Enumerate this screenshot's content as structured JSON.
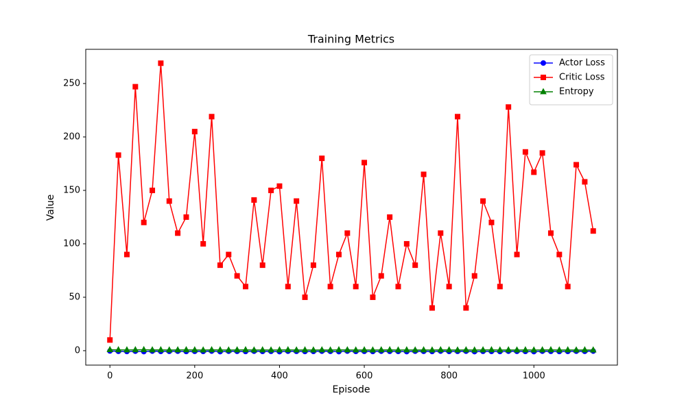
{
  "chart_data": {
    "type": "line",
    "title": "Training Metrics",
    "xlabel": "Episode",
    "ylabel": "Value",
    "x": [
      0,
      20,
      40,
      60,
      80,
      100,
      120,
      140,
      160,
      180,
      200,
      220,
      240,
      260,
      280,
      300,
      320,
      340,
      360,
      380,
      400,
      420,
      440,
      460,
      480,
      500,
      520,
      540,
      560,
      580,
      600,
      620,
      640,
      660,
      680,
      700,
      720,
      740,
      760,
      780,
      800,
      820,
      840,
      860,
      880,
      900,
      920,
      940,
      960,
      980,
      1000,
      1020,
      1040,
      1060,
      1080,
      1100,
      1120,
      1140
    ],
    "series": [
      {
        "name": "Actor Loss",
        "color": "#0000ff",
        "marker": "circle",
        "values": [
          -0.3,
          -0.6,
          -0.8,
          -0.5,
          -0.9,
          -0.4,
          -0.7,
          -0.6,
          -0.5,
          -0.8,
          -0.6,
          -0.7,
          -0.4,
          -0.9,
          -0.5,
          -0.6,
          -0.8,
          -0.5,
          -0.7,
          -0.6,
          -0.9,
          -0.5,
          -0.6,
          -0.8,
          -0.7,
          -0.5,
          -0.6,
          -0.9,
          -0.4,
          -0.7,
          -0.6,
          -0.8,
          -0.5,
          -0.6,
          -0.7,
          -0.9,
          -0.5,
          -0.6,
          -0.8,
          -0.4,
          -0.7,
          -0.6,
          -0.5,
          -0.9,
          -0.6,
          -0.7,
          -0.8,
          -0.5,
          -0.6,
          -0.7,
          -0.9,
          -0.5,
          -0.6,
          -0.8,
          -0.7,
          -0.5,
          -0.6,
          -0.4
        ]
      },
      {
        "name": "Critic Loss",
        "color": "#ff0000",
        "marker": "square",
        "values": [
          10,
          183,
          90,
          247,
          120,
          150,
          269,
          140,
          110,
          125,
          205,
          100,
          219,
          80,
          90,
          70,
          60,
          141,
          80,
          150,
          154,
          60,
          140,
          50,
          80,
          180,
          60,
          90,
          110,
          60,
          176,
          50,
          70,
          125,
          60,
          100,
          80,
          165,
          40,
          110,
          60,
          219,
          40,
          70,
          140,
          120,
          60,
          228,
          90,
          186,
          167,
          185,
          110,
          90,
          60,
          174,
          158,
          112
        ]
      },
      {
        "name": "Entropy",
        "color": "#008000",
        "marker": "triangle",
        "values": [
          0.9,
          0.8,
          0.7,
          0.8,
          0.9,
          0.7,
          0.8,
          0.6,
          0.7,
          0.8,
          0.7,
          0.6,
          0.8,
          0.7,
          0.6,
          0.7,
          0.8,
          0.6,
          0.7,
          0.6,
          0.7,
          0.8,
          0.6,
          0.7,
          0.6,
          0.7,
          0.6,
          0.8,
          0.7,
          0.6,
          0.7,
          0.6,
          0.7,
          0.8,
          0.6,
          0.7,
          0.6,
          0.7,
          0.6,
          0.8,
          0.7,
          0.6,
          0.7,
          0.6,
          0.7,
          0.8,
          0.6,
          0.7,
          0.6,
          0.7,
          0.6,
          0.7,
          0.8,
          0.6,
          0.7,
          0.6,
          0.7,
          0.6
        ]
      }
    ],
    "xlim": [
      -57,
      1197
    ],
    "ylim": [
      -13.5,
      282
    ],
    "xticks": [
      0,
      200,
      400,
      600,
      800,
      1000
    ],
    "yticks": [
      0,
      50,
      100,
      150,
      200,
      250
    ],
    "grid": false,
    "legend": "upper right"
  }
}
